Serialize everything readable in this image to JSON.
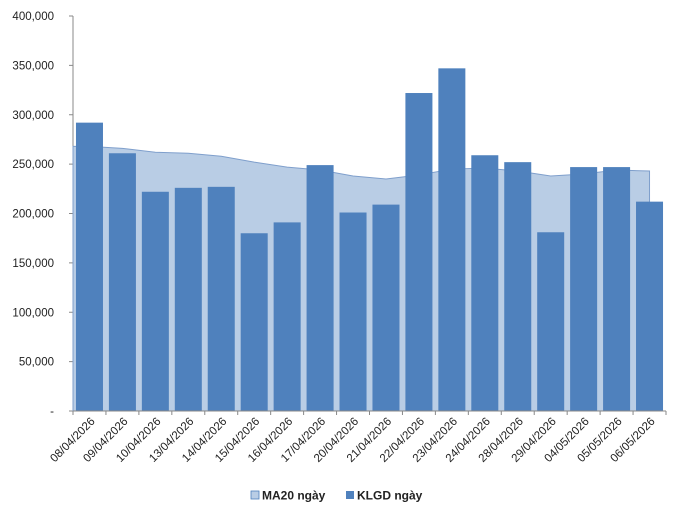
{
  "chart_data": {
    "type": "bar",
    "categories": [
      "08/04/2026",
      "09/04/2026",
      "10/04/2026",
      "13/04/2026",
      "14/04/2026",
      "15/04/2026",
      "16/04/2026",
      "17/04/2026",
      "20/04/2026",
      "21/04/2026",
      "22/04/2026",
      "23/04/2026",
      "24/04/2026",
      "28/04/2026",
      "29/04/2026",
      "04/05/2026",
      "05/05/2026",
      "06/05/2026"
    ],
    "series": [
      {
        "name": "KLGD ngày",
        "type": "bar",
        "color": "#4f81bd",
        "values": [
          292000,
          261000,
          222000,
          226000,
          227000,
          180000,
          191000,
          249000,
          201000,
          209000,
          322000,
          347000,
          259000,
          252000,
          181000,
          247000,
          247000,
          212000
        ]
      },
      {
        "name": "MA20 ngày",
        "type": "area",
        "color": "#b9cde5",
        "values": [
          268000,
          266000,
          262000,
          261000,
          258000,
          252000,
          247000,
          244000,
          238000,
          235000,
          239000,
          245000,
          246000,
          243000,
          238000,
          240000,
          244000,
          243000
        ]
      }
    ],
    "ylim": [
      0,
      400000
    ],
    "yticks": [
      "-",
      "50,000",
      "100,000",
      "150,000",
      "200,000",
      "250,000",
      "300,000",
      "350,000",
      "400,000"
    ],
    "ytick_values": [
      0,
      50000,
      100000,
      150000,
      200000,
      250000,
      300000,
      350000,
      400000
    ],
    "grid": false,
    "legend_position": "bottom"
  }
}
